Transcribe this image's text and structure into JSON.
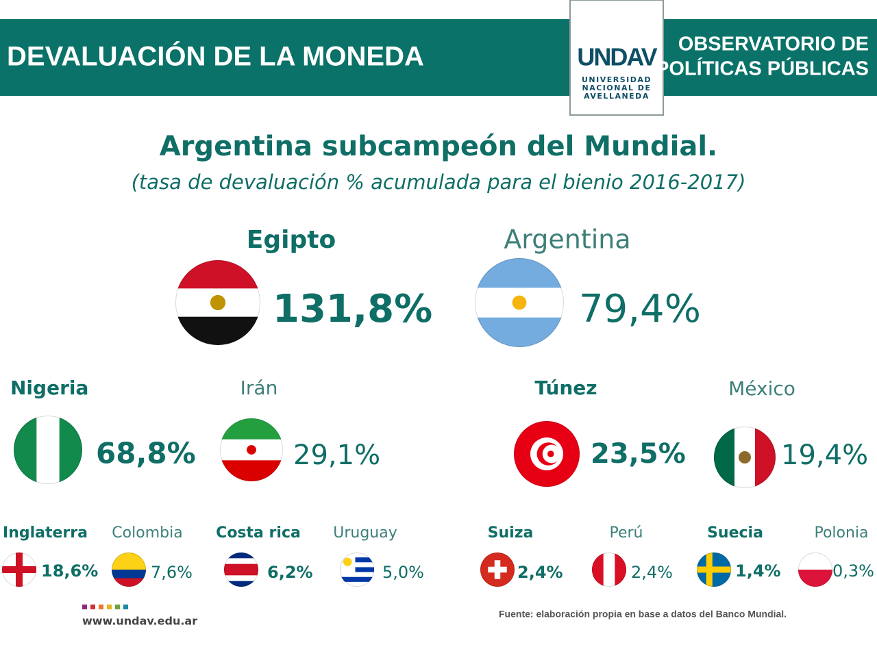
{
  "header": {
    "title": "DEVALUACIÓN DE LA MONEDA",
    "logo": {
      "mark": "UNDAV",
      "lines": [
        "UNIVERSIDAD",
        "NACIONAL DE",
        "AVELLANEDA"
      ]
    },
    "org": [
      "OBSERVATORIO DE",
      "POLÍTICAS PÚBLICAS"
    ]
  },
  "title": "Argentina subcampeón del Mundial.",
  "subtitle": "(tasa de devaluación % acumulada para el bienio 2016-2017)",
  "countries": [
    {
      "name": "Egipto",
      "value": "131,8%"
    },
    {
      "name": "Argentina",
      "value": "79,4%"
    },
    {
      "name": "Nigeria",
      "value": "68,8%"
    },
    {
      "name": "Irán",
      "value": "29,1%"
    },
    {
      "name": "Túnez",
      "value": "23,5%"
    },
    {
      "name": "México",
      "value": "19,4%"
    },
    {
      "name": "Inglaterra",
      "value": "18,6%"
    },
    {
      "name": "Colombia",
      "value": "7,6%"
    },
    {
      "name": "Costa rica",
      "value": "6,2%"
    },
    {
      "name": "Uruguay",
      "value": "5,0%"
    },
    {
      "name": "Suiza",
      "value": "2,4%"
    },
    {
      "name": "Perú",
      "value": "2,4%"
    },
    {
      "name": "Suecia",
      "value": "1,4%"
    },
    {
      "name": "Polonia",
      "value": "0,3%"
    }
  ],
  "footer": {
    "url": "www.undav.edu.ar",
    "source": "Fuente: elaboración propia en base a datos del Banco Mundial."
  }
}
